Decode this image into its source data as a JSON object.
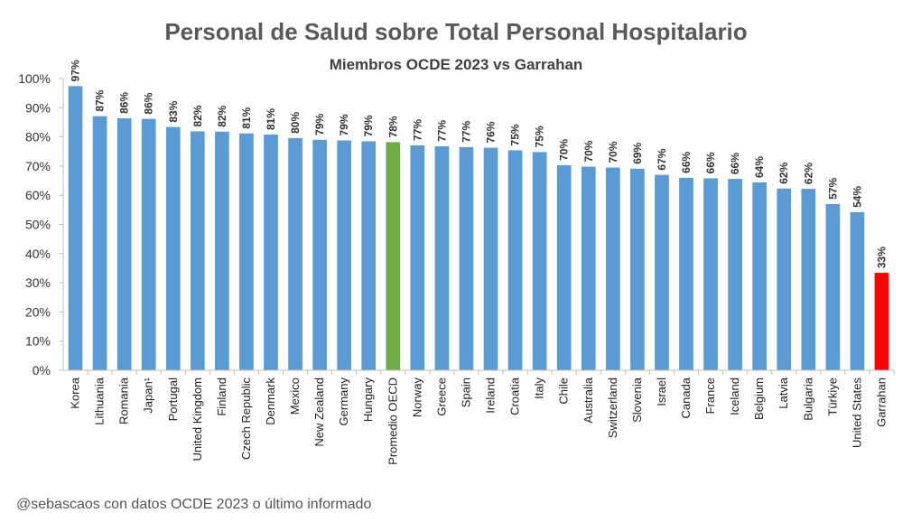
{
  "chart_data": {
    "type": "bar",
    "title": "Personal de Salud sobre Total Personal Hospitalario",
    "subtitle": "Miembros OCDE 2023 vs Garrahan",
    "xlabel": "",
    "ylabel": "",
    "ylim": [
      0,
      100
    ],
    "yticks": [
      "0%",
      "10%",
      "20%",
      "30%",
      "40%",
      "50%",
      "60%",
      "70%",
      "80%",
      "90%",
      "100%"
    ],
    "grid": false,
    "legend": "none",
    "categories": [
      "Korea",
      "Lithuania",
      "Romania",
      "Japan¹",
      "Portugal",
      "United Kingdom",
      "Finland",
      "Czech Republic",
      "Denmark",
      "Mexico",
      "New Zealand",
      "Germany",
      "Hungary",
      "Promedio OECD",
      "Norway",
      "Greece",
      "Spain",
      "Ireland",
      "Croatia",
      "Italy",
      "Chile",
      "Australia",
      "Switzerland",
      "Slovenia",
      "Israel",
      "Canada",
      "France",
      "Iceland",
      "Belgium",
      "Latvia",
      "Bulgaria",
      "Türkiye",
      "United States",
      "Garrahan"
    ],
    "values": [
      97.4,
      87.1,
      86.4,
      86.2,
      83.4,
      81.9,
      81.8,
      81.2,
      80.8,
      79.6,
      79.0,
      78.8,
      78.5,
      78.2,
      77.1,
      76.8,
      76.5,
      76.3,
      75.4,
      74.8,
      70.3,
      69.8,
      69.5,
      69.1,
      67.0,
      66.0,
      65.8,
      65.6,
      64.4,
      62.3,
      62.2,
      57.0,
      54.2,
      33.4
    ],
    "data_labels": [
      "97%",
      "87%",
      "86%",
      "86%",
      "83%",
      "82%",
      "82%",
      "81%",
      "81%",
      "80%",
      "79%",
      "79%",
      "79%",
      "78%",
      "77%",
      "77%",
      "77%",
      "76%",
      "75%",
      "75%",
      "70%",
      "70%",
      "70%",
      "69%",
      "67%",
      "66%",
      "66%",
      "66%",
      "64%",
      "62%",
      "62%",
      "57%",
      "54%",
      "33%"
    ],
    "colors": {
      "default": "#5B9BD5",
      "Promedio OECD": "#70AD47",
      "Garrahan": "#FF0000",
      "axis": "#BFBFBF"
    }
  },
  "footer": "@sebascaos con datos OCDE 2023 o último informado"
}
